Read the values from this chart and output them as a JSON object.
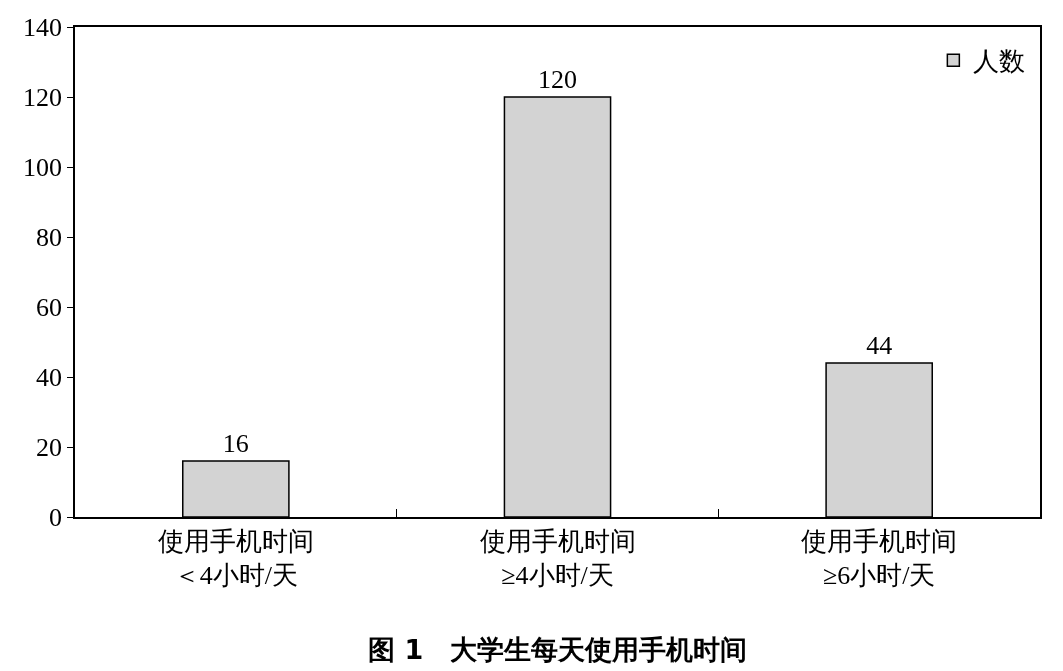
{
  "chart_data": {
    "type": "bar",
    "title": "图 1　大学生每天使用手机时间",
    "categories": [
      "使用手机时间＜4小时/天",
      "使用手机时间≥4小时/天",
      "使用手机时间≥6小时/天"
    ],
    "series": [
      {
        "name": "人数",
        "color": "#d3d3d3",
        "values": [
          16,
          120,
          44
        ]
      }
    ],
    "ylim": [
      0,
      140
    ],
    "yticks": [
      0,
      20,
      40,
      60,
      80,
      100,
      120,
      140
    ],
    "grid": false,
    "legend": "top right",
    "data_labels": true
  }
}
